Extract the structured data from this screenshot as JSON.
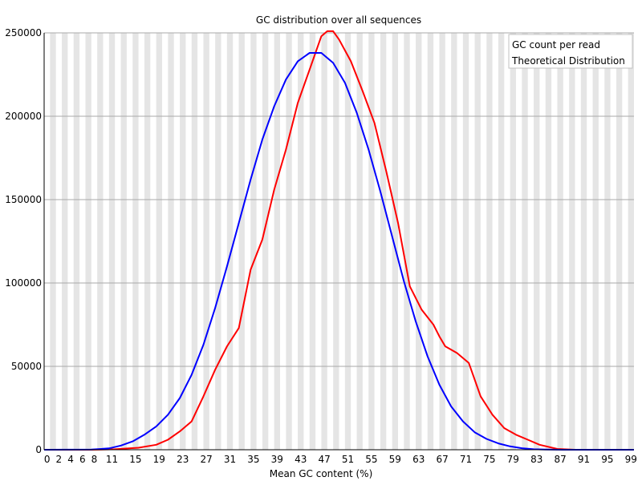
{
  "chart_data": {
    "type": "line",
    "title": "GC distribution over all sequences",
    "xlabel": "Mean GC content (%)",
    "ylabel": "",
    "xlim": [
      0,
      100
    ],
    "ylim": [
      0,
      250000
    ],
    "y_ticks": [
      "0",
      "50000",
      "100000",
      "150000",
      "200000",
      "250000"
    ],
    "x_ticks": [
      "0",
      "2",
      "4",
      "6",
      "8",
      "11",
      "15",
      "19",
      "23",
      "27",
      "31",
      "35",
      "39",
      "43",
      "47",
      "51",
      "55",
      "59",
      "63",
      "67",
      "71",
      "75",
      "79",
      "83",
      "87",
      "91",
      "95",
      "99"
    ],
    "grid": "horizontal lines with alternating vertical bands",
    "legend_position": "top-right",
    "series": [
      {
        "name": "GC count per read",
        "color": "#ff0000",
        "points": [
          [
            0,
            0
          ],
          [
            8,
            0
          ],
          [
            12,
            300
          ],
          [
            16,
            1200
          ],
          [
            19,
            3000
          ],
          [
            21,
            6000
          ],
          [
            23,
            11000
          ],
          [
            25,
            17000
          ],
          [
            27,
            32000
          ],
          [
            29,
            48000
          ],
          [
            31,
            62000
          ],
          [
            33,
            73000
          ],
          [
            35,
            108000
          ],
          [
            37,
            126000
          ],
          [
            39,
            156000
          ],
          [
            41,
            180000
          ],
          [
            43,
            208000
          ],
          [
            45,
            228000
          ],
          [
            47,
            248000
          ],
          [
            48,
            251000
          ],
          [
            49,
            251000
          ],
          [
            50,
            246000
          ],
          [
            52,
            233000
          ],
          [
            54,
            215000
          ],
          [
            56,
            196000
          ],
          [
            58,
            167000
          ],
          [
            60,
            136000
          ],
          [
            62,
            98000
          ],
          [
            64,
            84000
          ],
          [
            66,
            75000
          ],
          [
            67,
            68000
          ],
          [
            68,
            62000
          ],
          [
            70,
            58000
          ],
          [
            71,
            55000
          ],
          [
            72,
            52000
          ],
          [
            74,
            32000
          ],
          [
            76,
            21000
          ],
          [
            78,
            13000
          ],
          [
            80,
            9000
          ],
          [
            82,
            6000
          ],
          [
            84,
            3000
          ],
          [
            87,
            500
          ],
          [
            90,
            0
          ],
          [
            100,
            0
          ]
        ]
      },
      {
        "name": "Theoretical Distribution",
        "color": "#0000ff",
        "points": [
          [
            0,
            0
          ],
          [
            8,
            100
          ],
          [
            11,
            800
          ],
          [
            13,
            2500
          ],
          [
            15,
            5000
          ],
          [
            17,
            9000
          ],
          [
            19,
            14000
          ],
          [
            21,
            21000
          ],
          [
            23,
            31000
          ],
          [
            25,
            45000
          ],
          [
            27,
            63000
          ],
          [
            29,
            85000
          ],
          [
            31,
            110000
          ],
          [
            33,
            136000
          ],
          [
            35,
            162000
          ],
          [
            37,
            186000
          ],
          [
            39,
            206000
          ],
          [
            41,
            222000
          ],
          [
            43,
            233000
          ],
          [
            45,
            238000
          ],
          [
            47,
            238000
          ],
          [
            49,
            232000
          ],
          [
            51,
            220000
          ],
          [
            53,
            202000
          ],
          [
            55,
            180000
          ],
          [
            57,
            155000
          ],
          [
            59,
            128000
          ],
          [
            61,
            101000
          ],
          [
            63,
            77000
          ],
          [
            65,
            56000
          ],
          [
            67,
            39000
          ],
          [
            69,
            26000
          ],
          [
            71,
            17000
          ],
          [
            73,
            10500
          ],
          [
            75,
            6500
          ],
          [
            77,
            3800
          ],
          [
            79,
            2000
          ],
          [
            81,
            900
          ],
          [
            83,
            300
          ],
          [
            85,
            80
          ],
          [
            88,
            0
          ],
          [
            100,
            0
          ]
        ]
      }
    ]
  }
}
